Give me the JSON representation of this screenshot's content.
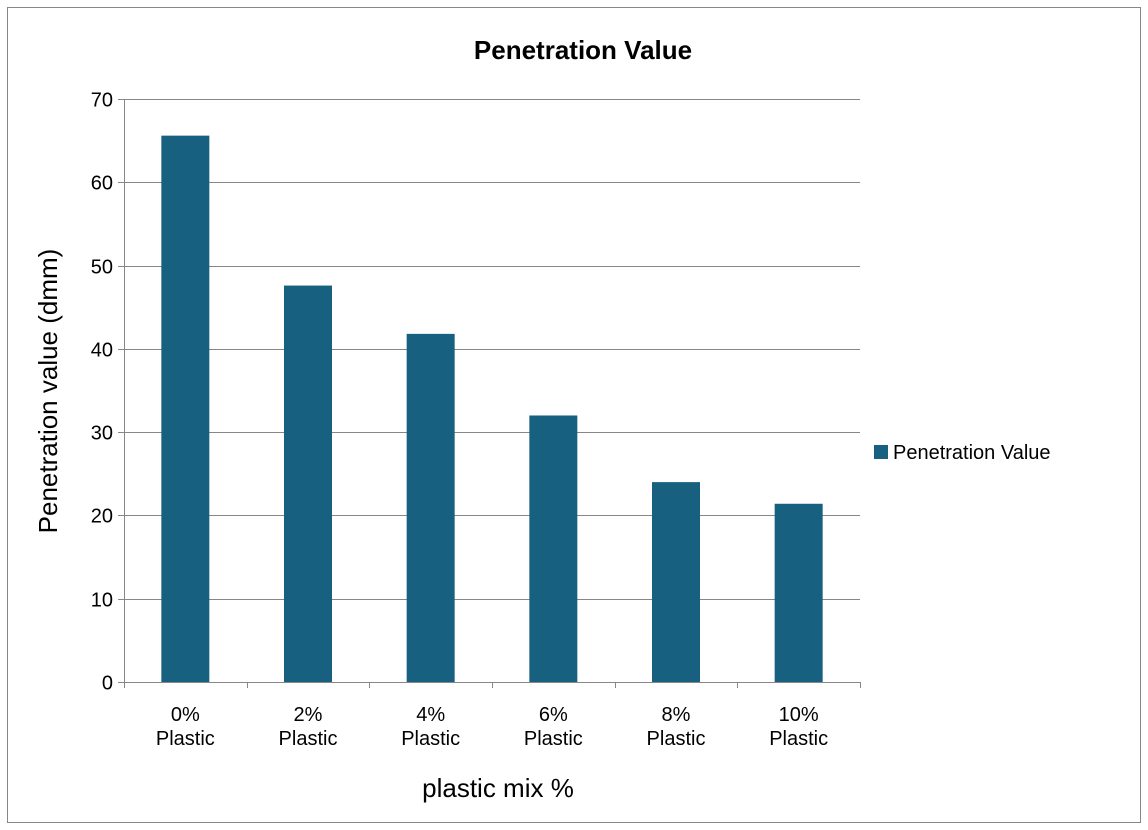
{
  "chart_data": {
    "type": "bar",
    "title": "Penetration Value",
    "categories": [
      [
        "0%",
        "Plastic"
      ],
      [
        "2%",
        "Plastic"
      ],
      [
        "4%",
        "Plastic"
      ],
      [
        "6%",
        "Plastic"
      ],
      [
        "8%",
        "Plastic"
      ],
      [
        "10%",
        "Plastic"
      ]
    ],
    "series": [
      {
        "name": "Penetration Value",
        "values": [
          65.6,
          47.6,
          41.8,
          32.0,
          24.0,
          21.4
        ],
        "color": "#17607f"
      }
    ],
    "xlabel": "plastic mix %",
    "ylabel": "Penetration value (dmm)",
    "ylim": [
      0,
      70
    ],
    "yticks": [
      0,
      10,
      20,
      30,
      40,
      50,
      60,
      70
    ],
    "grid": true,
    "legend_position": "right",
    "colors": {
      "gridline": "#878787",
      "axis": "#878787",
      "frame": "#878787"
    }
  }
}
